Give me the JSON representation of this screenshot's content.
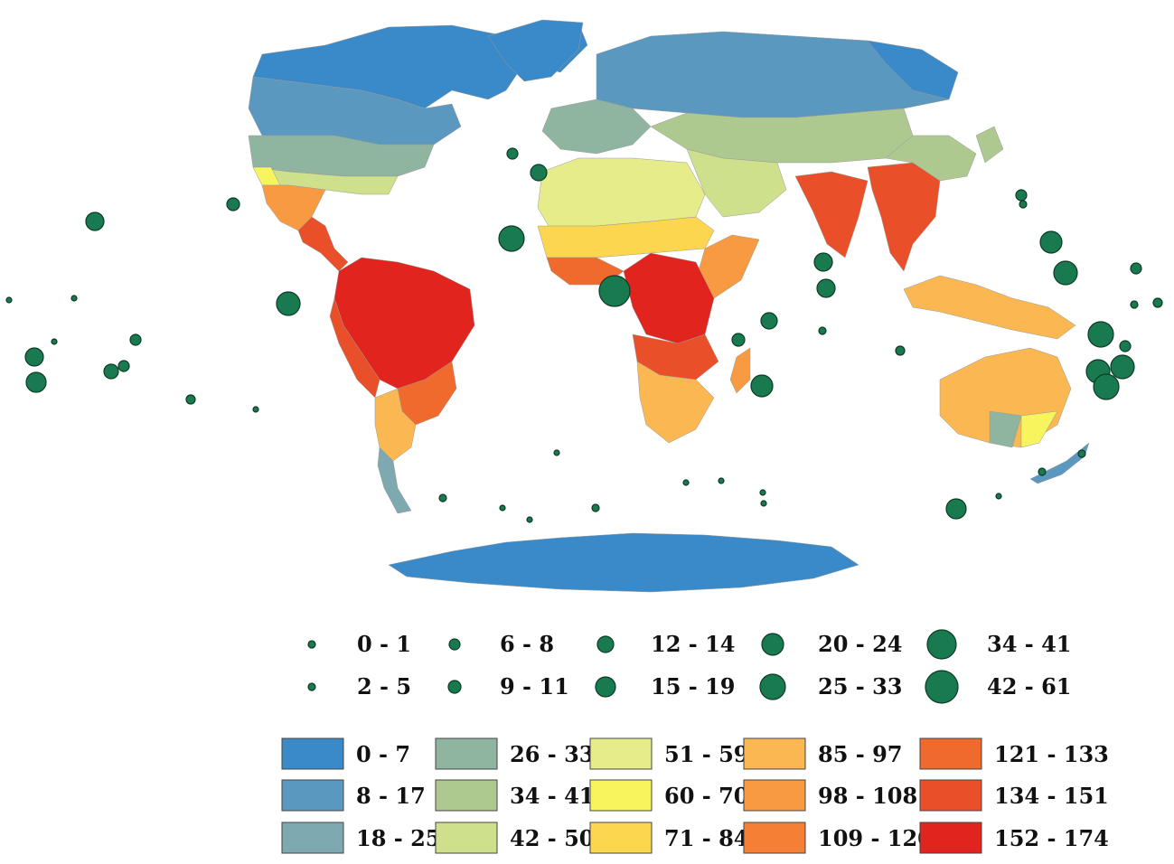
{
  "map": {
    "palette": {
      "c0": "#3a8ac9",
      "c1": "#5b98c0",
      "c2": "#7fa9b0",
      "c3": "#8fb4a0",
      "c4": "#aec990",
      "c5": "#cfe08c",
      "c6": "#e6ec8a",
      "c7": "#f7f55e",
      "c8": "#fbd64e",
      "c9": "#fbb752",
      "c10": "#f89a42",
      "c11": "#f47f35",
      "c12": "#ef6a2c",
      "c13": "#e9502a",
      "c14": "#e2241f"
    },
    "circle_color": "#1a7a4f"
  },
  "circle_legend": [
    {
      "label": "0 - 1",
      "r": 4
    },
    {
      "label": "2 - 5",
      "r": 4
    },
    {
      "label": "6 - 8",
      "r": 6
    },
    {
      "label": "9 - 11",
      "r": 7
    },
    {
      "label": "12 - 14",
      "r": 9
    },
    {
      "label": "15 - 19",
      "r": 11
    },
    {
      "label": "20 - 24",
      "r": 12
    },
    {
      "label": "25 - 33",
      "r": 14
    },
    {
      "label": "34 - 41",
      "r": 16
    },
    {
      "label": "42 - 61",
      "r": 18
    }
  ],
  "color_legend": [
    {
      "label": "0 - 7",
      "color": "#3a8ac9"
    },
    {
      "label": "8 - 17",
      "color": "#5b98c0"
    },
    {
      "label": "18 - 25",
      "color": "#7fa9b0"
    },
    {
      "label": "26 - 33",
      "color": "#8fb4a0"
    },
    {
      "label": "34 - 41",
      "color": "#aec990"
    },
    {
      "label": "42 - 50",
      "color": "#cfe08c"
    },
    {
      "label": "51 - 59",
      "color": "#e6ec8a"
    },
    {
      "label": "60 - 70",
      "color": "#f7f55e"
    },
    {
      "label": "71 - 84",
      "color": "#fbd64e"
    },
    {
      "label": "85 - 97",
      "color": "#fbb752"
    },
    {
      "label": "98 - 108",
      "color": "#f89a42"
    },
    {
      "label": "109 - 120",
      "color": "#f47f35"
    },
    {
      "label": "121 - 133",
      "color": "#ef6a2c"
    },
    {
      "label": "134 - 151",
      "color": "#e9502a"
    },
    {
      "label": "152 - 174",
      "color": "#e2241f"
    }
  ]
}
